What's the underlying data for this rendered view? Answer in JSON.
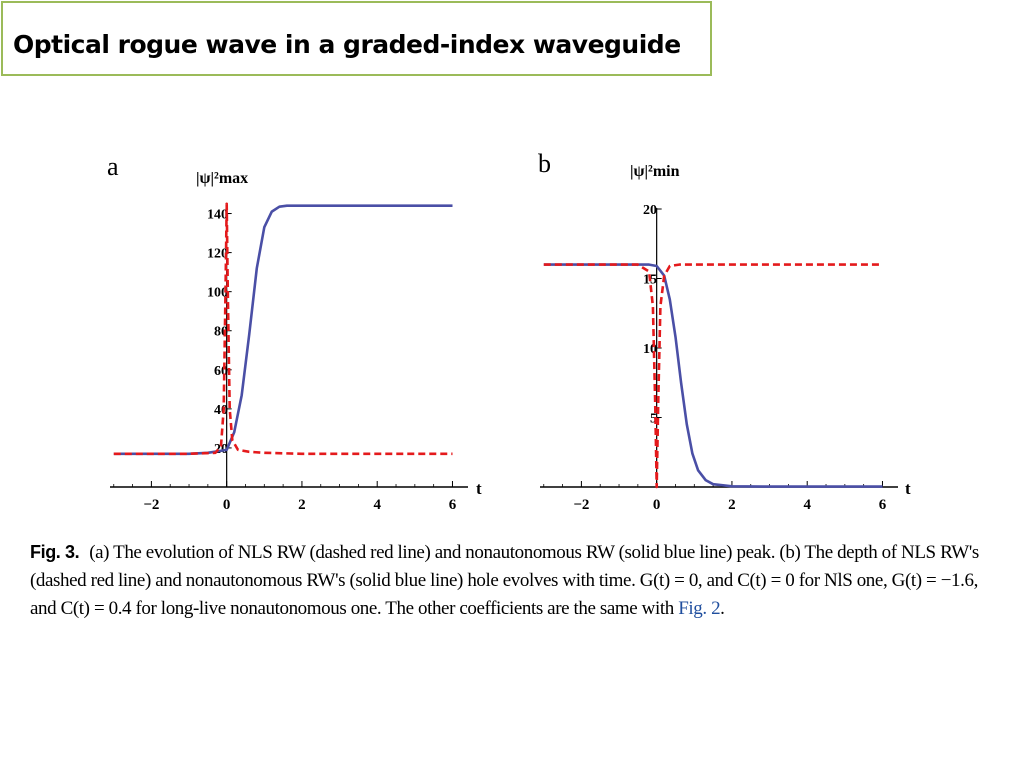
{
  "slide": {
    "title": "Optical rogue wave in a graded-index waveguide"
  },
  "caption": {
    "label": "Fig. 3.",
    "text": "(a) The evolution of NLS RW (dashed red line) and nonautonomous RW (solid blue line) peak. (b) The depth of NLS RW's (dashed red line) and nonautonomous RW's (solid blue line) hole evolves with time. G(t) = 0, and C(t) = 0 for NlS one, G(t) = −1.6, and C(t) = 0.4 for long-live nonautonomous one. The other coefficients are the same with",
    "link": "Fig. 2",
    "end": "."
  },
  "colors": {
    "blue": "#4a4fa6",
    "red": "#e41a1c",
    "axis": "#000000",
    "title_border": "#9bbb59"
  },
  "chart_data": [
    {
      "type": "line",
      "panel_label": "a",
      "ylabel": "|ψ|²max",
      "xlabel": "t",
      "xlim": [
        -3.1,
        6.2
      ],
      "ylim": [
        0,
        150
      ],
      "xticks": [
        -2,
        0,
        2,
        4,
        6
      ],
      "yticks": [
        20,
        40,
        60,
        80,
        100,
        120,
        140
      ],
      "series": [
        {
          "style": "solid",
          "color": "#4a4fa6",
          "x": [
            -3.0,
            -2.0,
            -1.0,
            -0.5,
            0.0,
            0.2,
            0.4,
            0.6,
            0.8,
            1.0,
            1.2,
            1.4,
            1.6,
            2.0,
            3.0,
            4.0,
            5.0,
            6.0
          ],
          "y": [
            17,
            17,
            17,
            17.5,
            19,
            28,
            47,
            78,
            112,
            133,
            141,
            143.5,
            144,
            144,
            144,
            144,
            144,
            144
          ]
        },
        {
          "style": "dashed",
          "color": "#e41a1c",
          "x": [
            -3.0,
            -1.0,
            -0.3,
            -0.15,
            -0.08,
            -0.03,
            0.0,
            0.03,
            0.08,
            0.15,
            0.3,
            0.6,
            1.0,
            2.0,
            4.0,
            6.0
          ],
          "y": [
            17,
            17,
            17.5,
            21,
            40,
            100,
            145,
            100,
            40,
            24,
            19,
            18,
            17.5,
            17,
            17,
            17
          ]
        }
      ]
    },
    {
      "type": "line",
      "panel_label": "b",
      "ylabel": "|ψ|²min",
      "xlabel": "t",
      "xlim": [
        -3.1,
        6.2
      ],
      "ylim": [
        0,
        20
      ],
      "xticks": [
        -2,
        0,
        2,
        4,
        6
      ],
      "yticks": [
        5,
        10,
        15,
        20
      ],
      "series": [
        {
          "style": "solid",
          "color": "#4a4fa6",
          "x": [
            -3.0,
            -1.0,
            -0.2,
            0.0,
            0.2,
            0.35,
            0.5,
            0.65,
            0.8,
            0.95,
            1.1,
            1.3,
            1.5,
            2.0,
            3.0,
            6.0
          ],
          "y": [
            16,
            16,
            16,
            15.9,
            15.2,
            13.5,
            10.8,
            7.5,
            4.5,
            2.4,
            1.2,
            0.5,
            0.2,
            0.05,
            0.03,
            0.03
          ]
        },
        {
          "style": "dashed",
          "color": "#e41a1c",
          "x": [
            -3.0,
            -0.5,
            -0.2,
            -0.1,
            -0.04,
            0.0,
            0.04,
            0.1,
            0.2,
            0.35,
            0.6,
            1.0,
            6.0
          ],
          "y": [
            16,
            16,
            15.5,
            13,
            6,
            0,
            6,
            13,
            15.2,
            15.9,
            16,
            16,
            16
          ]
        }
      ]
    }
  ]
}
